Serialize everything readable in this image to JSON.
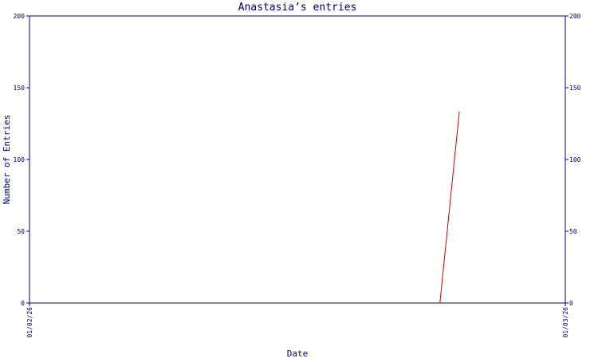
{
  "chart_data": {
    "type": "line",
    "title": "Anastasia’s entries",
    "xlabel": "Date",
    "ylabel": "Number of Entries",
    "x_tick_labels": [
      "01/02/26",
      "01/03/26"
    ],
    "ylim": [
      0,
      200
    ],
    "yticks": [
      0,
      50,
      100,
      150,
      200
    ],
    "grid": false,
    "series": [
      {
        "color": "#cc0000",
        "points": [
          {
            "x": "01/02/26 18:23",
            "y": 0
          },
          {
            "x": "01/02/26 19:15",
            "y": 133
          }
        ]
      }
    ],
    "colors": {
      "axis": "#000080",
      "text": "#000080",
      "background": "#ffffff"
    }
  }
}
